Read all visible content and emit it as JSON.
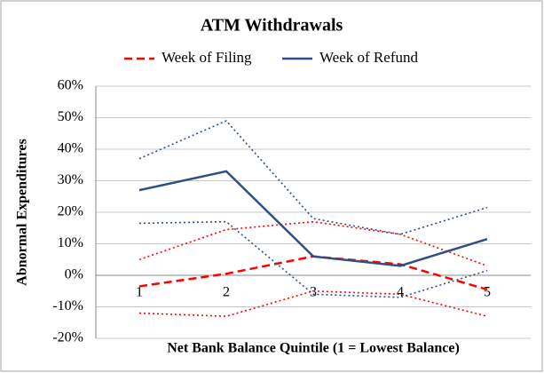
{
  "chart_data": {
    "type": "line",
    "title": "ATM Withdrawals",
    "xlabel": "Net Bank Balance Quintile (1 = Lowest Balance)",
    "ylabel": "Abnormal Expenditures",
    "categories": [
      "1",
      "2",
      "3",
      "4",
      "5"
    ],
    "series": [
      {
        "name": "Week of Filing",
        "color": "#ff0000",
        "line_style": "dashed",
        "values": [
          -3.5,
          0.5,
          6,
          3.5,
          -4.5
        ],
        "upper": [
          5,
          14.5,
          17,
          13,
          3
        ],
        "lower": [
          -12,
          -13,
          -5,
          -6,
          -13
        ]
      },
      {
        "name": "Week of Refund",
        "color": "#2f4f85",
        "line_style": "solid",
        "values": [
          27,
          33,
          6,
          3,
          11.5
        ],
        "upper": [
          37,
          49,
          18,
          13,
          21.5
        ],
        "lower": [
          16.5,
          17,
          -6,
          -7,
          1.5
        ]
      }
    ],
    "ylim": [
      -20,
      60
    ],
    "yticks": [
      {
        "value": -20,
        "label": "-20%"
      },
      {
        "value": -10,
        "label": "-10%"
      },
      {
        "value": 0,
        "label": "0%"
      },
      {
        "value": 10,
        "label": "10%"
      },
      {
        "value": 20,
        "label": "20%"
      },
      {
        "value": 30,
        "label": "30%"
      },
      {
        "value": 40,
        "label": "40%"
      },
      {
        "value": 50,
        "label": "50%"
      },
      {
        "value": 60,
        "label": "60%"
      }
    ],
    "grid": true,
    "legend": "top"
  }
}
